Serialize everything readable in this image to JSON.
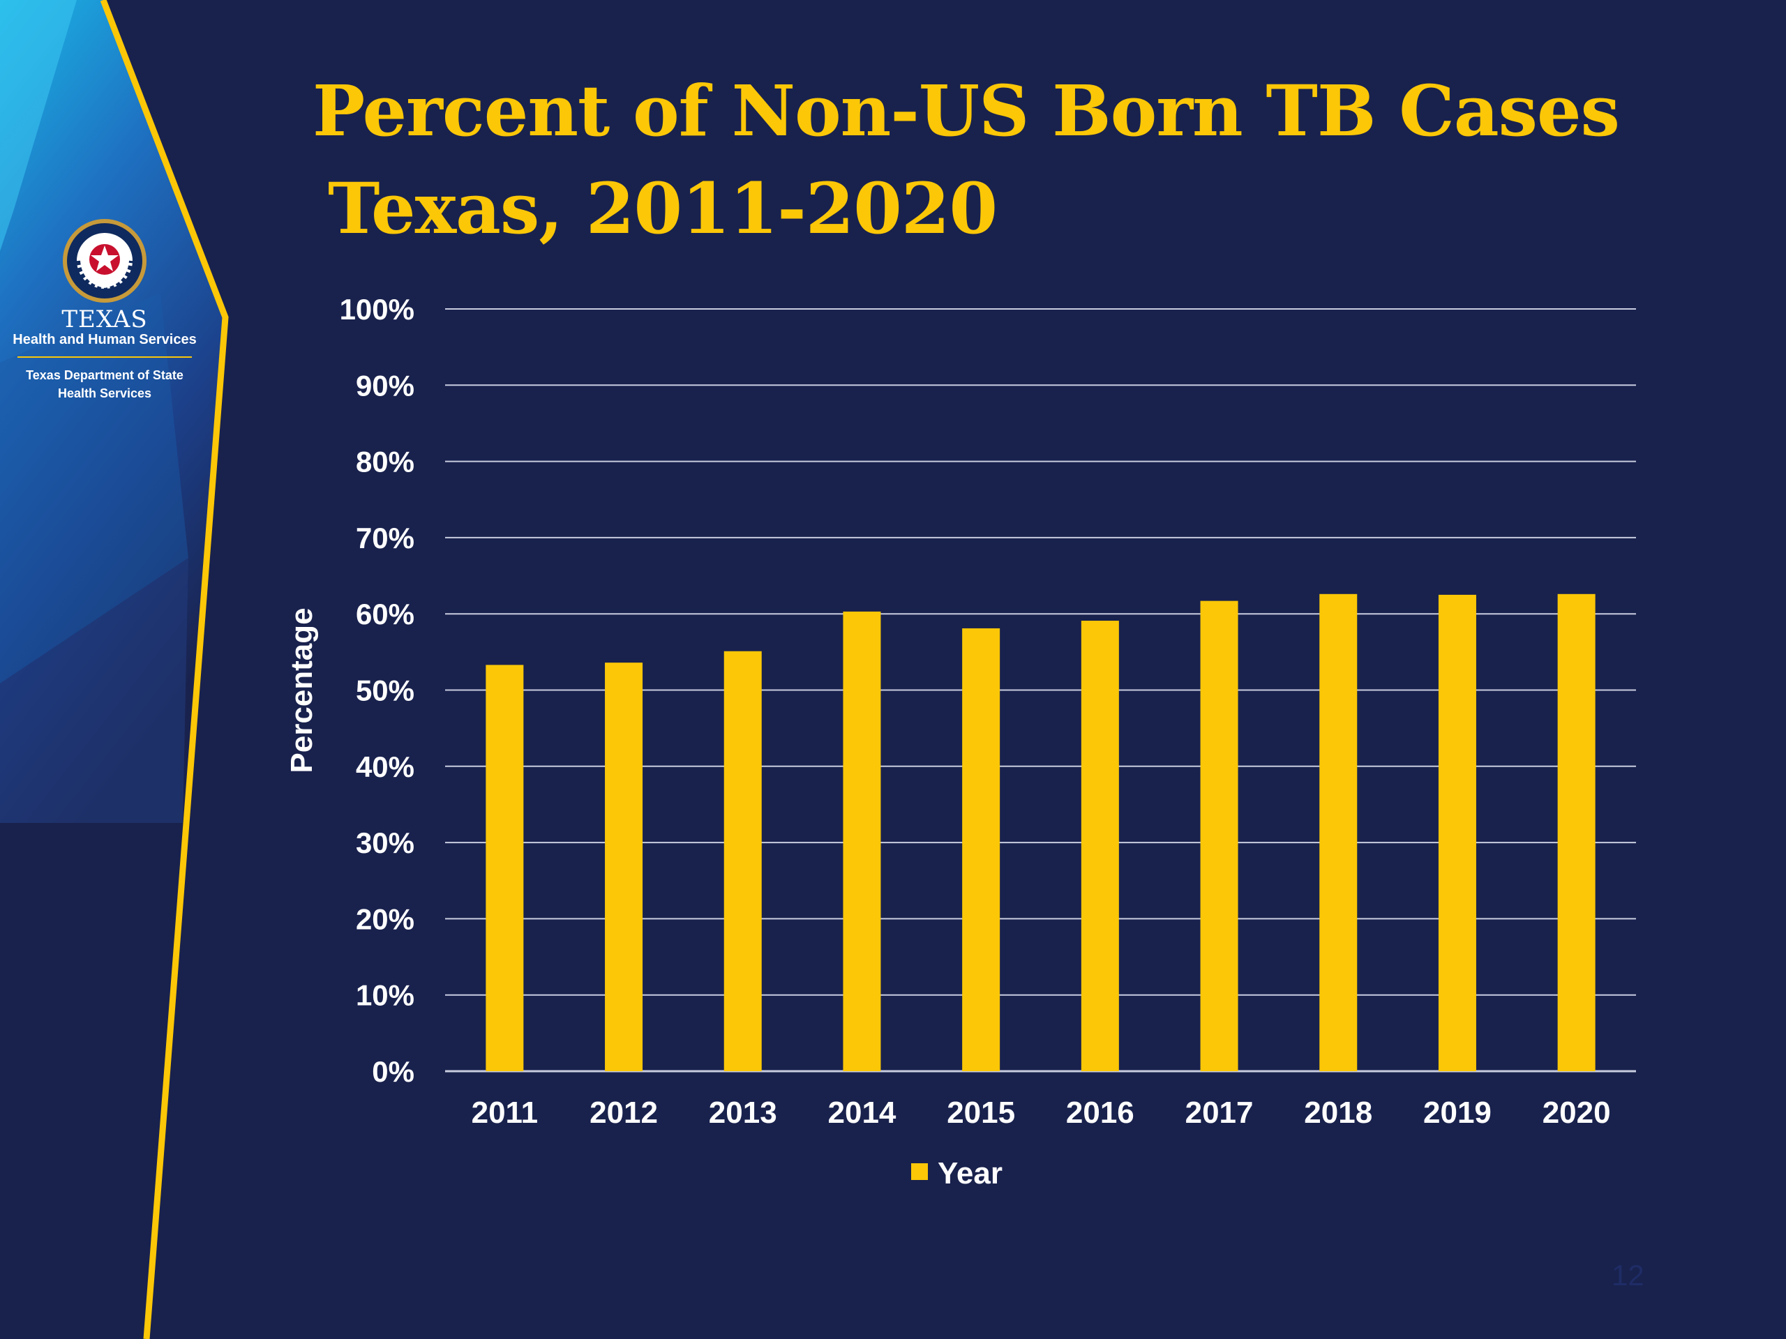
{
  "title": {
    "line1": "Percent of Non-US Born TB Cases",
    "line2": "Texas, 2011-2020"
  },
  "logo": {
    "name": "TEXAS",
    "agency": "Health and Human Services",
    "department": "Texas Department of State Health Services"
  },
  "page_number": "12",
  "colors": {
    "background": "#19224d",
    "accent": "#fbc707",
    "gridline": "#c9cde0",
    "text": "#ffffff"
  },
  "chart_data": {
    "type": "bar",
    "title": "Percent of Non-US Born TB Cases Texas, 2011-2020",
    "xlabel": "",
    "ylabel": "Percentage",
    "categories": [
      "2011",
      "2012",
      "2013",
      "2014",
      "2015",
      "2016",
      "2017",
      "2018",
      "2019",
      "2020"
    ],
    "series": [
      {
        "name": "Year",
        "values": [
          53.3,
          53.6,
          55.1,
          60.3,
          58.1,
          59.1,
          61.7,
          62.6,
          62.5,
          62.6
        ]
      }
    ],
    "ylim": [
      0,
      100
    ],
    "yticks": [
      0,
      10,
      20,
      30,
      40,
      50,
      60,
      70,
      80,
      90,
      100
    ],
    "ytick_labels": [
      "0%",
      "10%",
      "20%",
      "30%",
      "40%",
      "50%",
      "60%",
      "70%",
      "80%",
      "90%",
      "100%"
    ],
    "grid": true,
    "legend": "bottom"
  }
}
